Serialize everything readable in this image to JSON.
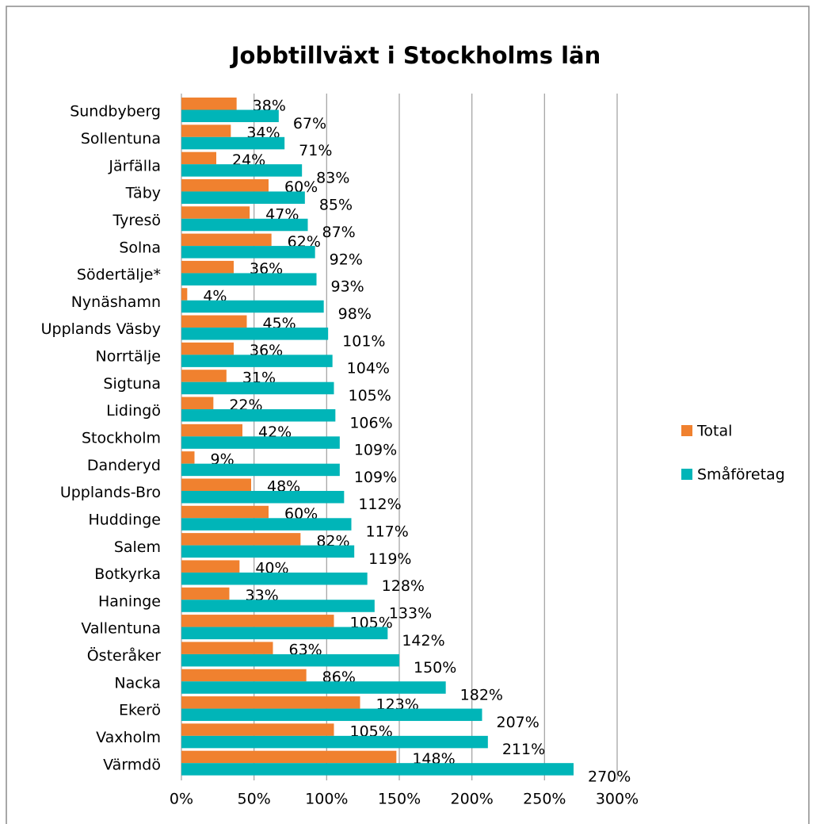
{
  "chart_data": {
    "type": "bar",
    "orientation": "horizontal",
    "title": "Jobbtillväxt i Stockholms län",
    "categories": [
      "Sundbyberg",
      "Sollentuna",
      "Järfälla",
      "Täby",
      "Tyresö",
      "Solna",
      "Södertälje*",
      "Nynäshamn",
      "Upplands Väsby",
      "Norrtälje",
      "Sigtuna",
      "Lidingö",
      "Stockholm",
      "Danderyd",
      "Upplands-Bro",
      "Huddinge",
      "Salem",
      "Botkyrka",
      "Haninge",
      "Vallentuna",
      "Österåker",
      "Nacka",
      "Ekerö",
      "Vaxholm",
      "Värmdö"
    ],
    "series": [
      {
        "name": "Total",
        "color": "#f0812f",
        "values": [
          38,
          34,
          24,
          60,
          47,
          62,
          36,
          4,
          45,
          36,
          31,
          22,
          42,
          9,
          48,
          60,
          82,
          40,
          33,
          105,
          63,
          86,
          123,
          105,
          148
        ],
        "value_labels": [
          "38%",
          "34%",
          "24%",
          "60%",
          "47%",
          "62%",
          "36%",
          "4%",
          "45%",
          "36%",
          "31%",
          "22%",
          "42%",
          "9%",
          "48%",
          "60%",
          "82%",
          "40%",
          "33%",
          "105%",
          "63%",
          "86%",
          "123%",
          "105%",
          "148%"
        ]
      },
      {
        "name": "Småföretag",
        "color": "#00b5b8",
        "values": [
          67,
          71,
          83,
          85,
          87,
          92,
          93,
          98,
          101,
          104,
          105,
          106,
          109,
          109,
          112,
          117,
          119,
          128,
          133,
          142,
          150,
          182,
          207,
          211,
          270
        ],
        "value_labels": [
          "67%",
          "71%",
          "83%",
          "85%",
          "87%",
          "92%",
          "93%",
          "98%",
          "101%",
          "104%",
          "105%",
          "106%",
          "109%",
          "109%",
          "112%",
          "117%",
          "119%",
          "128%",
          "133%",
          "142%",
          "150%",
          "182%",
          "207%",
          "211%",
          "270%"
        ]
      }
    ],
    "xlim": [
      0,
      300
    ],
    "xticks": [
      {
        "value": 0,
        "label": "0%"
      },
      {
        "value": 50,
        "label": "50%"
      },
      {
        "value": 100,
        "label": "100%"
      },
      {
        "value": 150,
        "label": "150%"
      },
      {
        "value": 200,
        "label": "200%"
      },
      {
        "value": 250,
        "label": "250%"
      },
      {
        "value": 300,
        "label": "300%"
      }
    ],
    "grid": true,
    "legend": "right"
  }
}
